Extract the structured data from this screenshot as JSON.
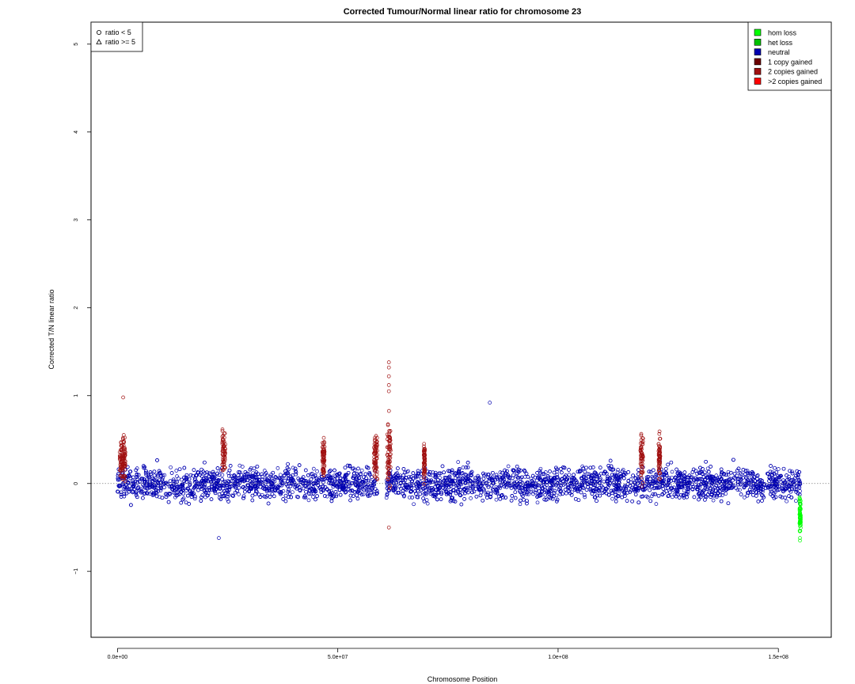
{
  "chart_data": {
    "type": "scatter",
    "title": "Corrected Tumour/Normal linear ratio for chromosome  23",
    "xlabel": "Chromosome Position",
    "ylabel": "Corrected T/N linear ratio",
    "xlim": [
      -6000000,
      162000000
    ],
    "ylim": [
      -1.75,
      5.25
    ],
    "x_ticks": [
      {
        "value": 0,
        "label": "0.0e+00"
      },
      {
        "value": 50000000,
        "label": "5.0e+07"
      },
      {
        "value": 100000000,
        "label": "1.0e+08"
      },
      {
        "value": 150000000,
        "label": "1.5e+08"
      }
    ],
    "y_ticks": [
      {
        "value": -1,
        "label": "−1"
      },
      {
        "value": 0,
        "label": "0"
      },
      {
        "value": 1,
        "label": "1"
      },
      {
        "value": 2,
        "label": "2"
      },
      {
        "value": 3,
        "label": "3"
      },
      {
        "value": 4,
        "label": "4"
      },
      {
        "value": 5,
        "label": "5"
      }
    ],
    "reference_line": {
      "y": 0,
      "style": "dotted",
      "color": "#808080"
    },
    "shape_legend": {
      "position": "top-left",
      "entries": [
        {
          "symbol": "circle",
          "label": "ratio < 5"
        },
        {
          "symbol": "triangle",
          "label": "ratio >= 5"
        }
      ]
    },
    "color_legend": {
      "position": "top-right",
      "entries": [
        {
          "label": "hom loss",
          "color": "#00ff00"
        },
        {
          "label": "het loss",
          "color": "#00c000"
        },
        {
          "label": "neutral",
          "color": "#0000b0"
        },
        {
          "label": "1 copy gained",
          "color": "#6b0000"
        },
        {
          "label": "2 copies gained",
          "color": "#a01010"
        },
        {
          "label": ">2 copies gained",
          "color": "#ff0000"
        }
      ]
    },
    "segments": [
      {
        "x": [
          0,
          155000000
        ],
        "center": 0.0,
        "spread": 0.13,
        "state": "neutral"
      },
      {
        "x": [
          500000,
          1800000
        ],
        "center": 0.3,
        "spread": 0.18,
        "state": "2 copies gained"
      },
      {
        "x": [
          23800000,
          24500000
        ],
        "center": 0.35,
        "spread": 0.18,
        "state": "2 copies gained"
      },
      {
        "x": [
          46500000,
          47000000
        ],
        "center": 0.3,
        "spread": 0.15,
        "state": "2 copies gained"
      },
      {
        "x": [
          58200000,
          59000000
        ],
        "center": 0.3,
        "spread": 0.2,
        "state": "2 copies gained"
      },
      {
        "x": [
          61200000,
          62000000
        ],
        "center": 0.4,
        "spread": 0.3,
        "state": "2 copies gained"
      },
      {
        "x": [
          69500000,
          69800000
        ],
        "center": 0.25,
        "spread": 0.15,
        "state": "2 copies gained"
      },
      {
        "x": [
          118700000,
          119300000
        ],
        "center": 0.3,
        "spread": 0.18,
        "state": "2 copies gained"
      },
      {
        "x": [
          122800000,
          123200000
        ],
        "center": 0.3,
        "spread": 0.18,
        "state": "2 copies gained"
      },
      {
        "x": [
          154800000,
          155100000
        ],
        "center": -0.35,
        "spread": 0.15,
        "state": "hom loss"
      }
    ],
    "gap": [
      59000000,
      61000000
    ],
    "notable_points": [
      {
        "x": 1300000,
        "y": 0.98,
        "state": "2 copies gained"
      },
      {
        "x": 61600000,
        "y": 1.38,
        "state": "2 copies gained"
      },
      {
        "x": 61600000,
        "y": 1.32,
        "state": "2 copies gained"
      },
      {
        "x": 61600000,
        "y": 1.22,
        "state": "2 copies gained"
      },
      {
        "x": 61600000,
        "y": 1.12,
        "state": "2 copies gained"
      },
      {
        "x": 61600000,
        "y": 1.05,
        "state": "2 copies gained"
      },
      {
        "x": 61600000,
        "y": -0.5,
        "state": "2 copies gained"
      },
      {
        "x": 84500000,
        "y": 0.92,
        "state": "neutral"
      },
      {
        "x": 23000000,
        "y": -0.62,
        "state": "neutral"
      },
      {
        "x": 154900000,
        "y": -0.62,
        "state": "hom loss"
      },
      {
        "x": 154900000,
        "y": -0.65,
        "state": "hom loss"
      }
    ]
  }
}
